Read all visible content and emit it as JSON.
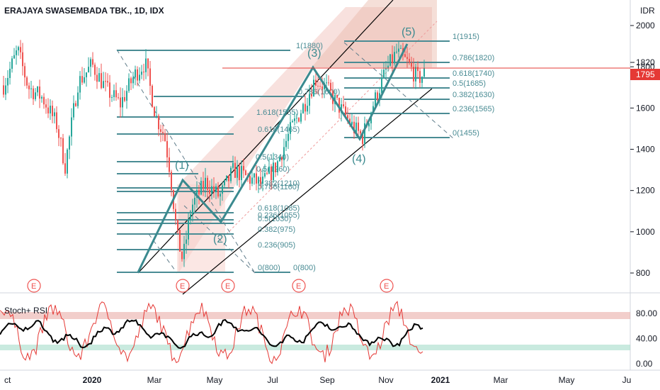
{
  "header": {
    "symbol_title": "ERAJAYA SWASEMBADA TBK., 1D, IDX",
    "currency": "IDR"
  },
  "indicator": {
    "title": "Stoch+ RSI",
    "axis_ticks": [
      "80.00",
      "40.00",
      "0.00"
    ]
  },
  "colors": {
    "up_candle": "#26a69a",
    "down_candle": "#ef5350",
    "fib_line": "#4a8c94",
    "wave": "#3b8a8f",
    "channel": "#000000",
    "price_line": "#e53935",
    "price_badge": "#e53935",
    "earnings": "#ef5350"
  },
  "chart_data": {
    "type": "candlestick",
    "price_axis": {
      "ticks": [
        "2000",
        "1800",
        "1600",
        "1400",
        "1200",
        "1000",
        "800"
      ],
      "ylim": [
        730,
        2080
      ],
      "labels": {
        "marked": "1820",
        "last": "1795"
      }
    },
    "time_axis": {
      "labels": [
        "ct",
        "2020",
        "Mar",
        "May",
        "Jul",
        "Sep",
        "Nov",
        "2021",
        "Mar",
        "May",
        "Ju"
      ]
    },
    "fib_retracement_1": {
      "levels": [
        "1(1880)",
        "1.618(1555)",
        "0.786(1600)",
        "0.618(1465)",
        "0.5(1340)",
        "0.5(1260)",
        "0.382(1210)",
        "0.786(1160)",
        "0.618(1085)",
        "0.236(1055)",
        "0.5(1030)",
        "0.382(975)",
        "0.236(905)",
        "0(800)",
        "0(800)"
      ],
      "values": [
        1880,
        1555,
        1600,
        1465,
        1340,
        1260,
        1210,
        1160,
        1085,
        1055,
        1030,
        975,
        905,
        800,
        800
      ]
    },
    "fib_retracement_2": {
      "levels": [
        "1(1915)",
        "0.786(1820)",
        "0.618(1740)",
        "0.5(1685)",
        "0.382(1630)",
        "0.236(1565)",
        "0(1455)"
      ],
      "values": [
        1915,
        1820,
        1740,
        1685,
        1630,
        1565,
        1455
      ]
    },
    "elliott_waves": [
      {
        "label": "(1)",
        "price": 1255
      },
      {
        "label": "(2)",
        "price": 1050
      },
      {
        "label": "(3)",
        "price": 1780
      },
      {
        "label": "(4)",
        "price": 1450
      },
      {
        "label": "(5)",
        "price": 1890
      }
    ],
    "earnings_marker": "E"
  }
}
